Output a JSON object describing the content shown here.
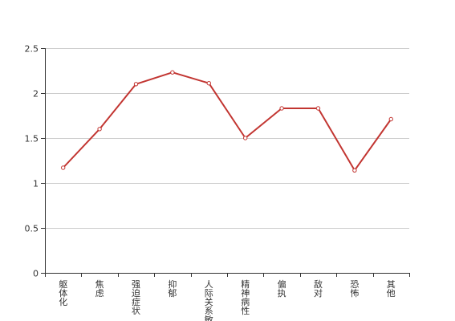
{
  "chart_data": {
    "type": "line",
    "title": "",
    "xlabel": "",
    "ylabel": "",
    "categories": [
      "躯体化",
      "焦虑",
      "强迫症状",
      "抑郁",
      "人际关系敏感",
      "精神病性",
      "偏执",
      "敌对",
      "恐怖",
      "其他"
    ],
    "series": [
      {
        "values": [
          1.17,
          1.6,
          2.1,
          2.23,
          2.11,
          1.5,
          1.83,
          1.83,
          1.14,
          1.71
        ],
        "color": "#c23531"
      }
    ],
    "ylim": [
      0,
      2.5
    ],
    "yticks": [
      0,
      0.5,
      1,
      1.5,
      2,
      2.5
    ],
    "ytick_labels": [
      "0",
      "0.5",
      "1",
      "1.5",
      "2",
      "2.5"
    ],
    "grid": true,
    "legend": "none"
  }
}
